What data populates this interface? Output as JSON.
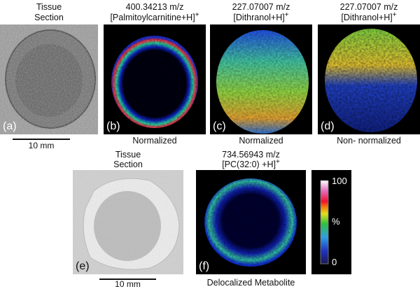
{
  "top_row": {
    "a": {
      "title_line1": "Tissue",
      "title_line2": "Section",
      "label": "(a)",
      "scale": "10 mm"
    },
    "b": {
      "title_line1": "400.34213 m/z",
      "title_line2": "[Palmitoylcarnitine+H]",
      "sup": "+",
      "label": "(b)",
      "caption": "Normalized"
    },
    "c": {
      "title_line1": "227.07007 m/z",
      "title_line2": "[Dithranol+H]",
      "sup": "+",
      "label": "(c)",
      "caption": "Normalized"
    },
    "d": {
      "title_line1": "227.07007 m/z",
      "title_line2": "[Dithranol+H]",
      "sup": "+",
      "label": "(d)",
      "caption": "Non- normalized"
    }
  },
  "bottom_row": {
    "e": {
      "title_line1": "Tissue",
      "title_line2": "Section",
      "label": "(e)",
      "scale": "10 mm"
    },
    "f": {
      "title_line1": "734.56943 m/z",
      "title_line2": "[PC(32:0) +H]",
      "sup": "+",
      "label": "(f)",
      "caption": "Delocalized Metabolite"
    }
  },
  "colorbar": {
    "max": "100",
    "mid": "%",
    "min": "0",
    "colors": [
      "#1a1a50",
      "#2030c0",
      "#30a0e0",
      "#30c040",
      "#e0e020",
      "#f08010",
      "#f01030",
      "#e070c0",
      "#ffffff"
    ]
  }
}
